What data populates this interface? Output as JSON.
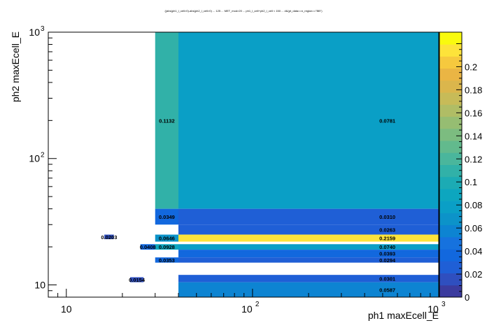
{
  "chart_data": {
    "type": "heatmap",
    "title": "((abs(ph1_l_cell>0)-abs(ph2_l_cell>0) ... 125 ... MET_mod>20 ... ph1_l_cell+ph2_l_cell < 150 ... d&(pt_data==n_region==\"BB\")",
    "xlabel": "ph1 maxEcell_E",
    "ylabel": "ph2 maxEcell_E",
    "xscale": "log",
    "yscale": "log",
    "xlim": [
      8,
      1000
    ],
    "ylim": [
      8,
      1000
    ],
    "zlim": [
      0,
      0.23
    ],
    "cells": [
      {
        "x0": 16,
        "x1": 18,
        "y0": 23,
        "y1": 25,
        "z": 0.0203,
        "label": "0.0203"
      },
      {
        "x0": 22,
        "x1": 26,
        "y0": 10.5,
        "y1": 11.5,
        "z": 0.0154,
        "label": "0.0154"
      },
      {
        "x0": 25,
        "x1": 30,
        "y0": 19,
        "y1": 21,
        "z": 0.0408,
        "label": "0.0408"
      },
      {
        "x0": 30,
        "x1": 40,
        "y0": 40,
        "y1": 1000,
        "z": 0.1132,
        "label": "0.1132"
      },
      {
        "x0": 40,
        "x1": 1000,
        "y0": 40,
        "y1": 1000,
        "z": 0.0781,
        "label": "0.0781"
      },
      {
        "x0": 30,
        "x1": 40,
        "y0": 30,
        "y1": 40,
        "z": 0.0349,
        "label": "0.0349"
      },
      {
        "x0": 40,
        "x1": 1000,
        "y0": 30,
        "y1": 40,
        "z": 0.031,
        "label": "0.0310"
      },
      {
        "x0": 40,
        "x1": 1000,
        "y0": 25,
        "y1": 30,
        "z": 0.0263,
        "label": "0.0263"
      },
      {
        "x0": 30,
        "x1": 40,
        "y0": 22,
        "y1": 25,
        "z": 0.0646,
        "label": "0.0646"
      },
      {
        "x0": 40,
        "x1": 1000,
        "y0": 22,
        "y1": 25,
        "z": 0.2159,
        "label": "0.2159"
      },
      {
        "x0": 30,
        "x1": 40,
        "y0": 19,
        "y1": 21,
        "z": 0.0928,
        "label": "0.0928"
      },
      {
        "x0": 40,
        "x1": 1000,
        "y0": 19,
        "y1": 21,
        "z": 0.074,
        "label": "0.0740"
      },
      {
        "x0": 40,
        "x1": 1000,
        "y0": 16.5,
        "y1": 19,
        "z": 0.0393,
        "label": "0.0393"
      },
      {
        "x0": 30,
        "x1": 40,
        "y0": 15,
        "y1": 16.5,
        "z": 0.0353,
        "label": "0.0353"
      },
      {
        "x0": 40,
        "x1": 1000,
        "y0": 15,
        "y1": 16.5,
        "z": 0.0294,
        "label": "0.0294"
      },
      {
        "x0": 40,
        "x1": 1000,
        "y0": 10.5,
        "y1": 12,
        "z": 0.0301,
        "label": "0.0301"
      },
      {
        "x0": 40,
        "x1": 1000,
        "y0": 8,
        "y1": 10.5,
        "z": 0.0587,
        "label": "0.0587"
      }
    ],
    "x_major_ticks": [
      {
        "value": 10,
        "base": "10",
        "exp": ""
      },
      {
        "value": 100,
        "base": "10",
        "exp": "2"
      },
      {
        "value": 1000,
        "base": "10",
        "exp": "3"
      }
    ],
    "y_major_ticks": [
      {
        "value": 10,
        "base": "10",
        "exp": ""
      },
      {
        "value": 100,
        "base": "10",
        "exp": "2"
      },
      {
        "value": 1000,
        "base": "10",
        "exp": "3"
      }
    ],
    "colorbar_ticks": [
      {
        "value": 0,
        "label": "0"
      },
      {
        "value": 0.02,
        "label": "0.02"
      },
      {
        "value": 0.04,
        "label": "0.04"
      },
      {
        "value": 0.06,
        "label": "0.06"
      },
      {
        "value": 0.08,
        "label": "0.08"
      },
      {
        "value": 0.1,
        "label": "0.1"
      },
      {
        "value": 0.12,
        "label": "0.12"
      },
      {
        "value": 0.14,
        "label": "0.14"
      },
      {
        "value": 0.16,
        "label": "0.16"
      },
      {
        "value": 0.18,
        "label": "0.18"
      },
      {
        "value": 0.2,
        "label": "0.2"
      }
    ],
    "palette": [
      "#3b3b9e",
      "#2f4fbf",
      "#1f5fd6",
      "#1268de",
      "#1672de",
      "#0d84d2",
      "#0c93c9",
      "#0a9fc6",
      "#0da6bf",
      "#1cabb4",
      "#31b1a8",
      "#4ab69c",
      "#62ba8d",
      "#7cbc80",
      "#96bd72",
      "#b0bd65",
      "#c7bb58",
      "#dbb64c",
      "#eab544",
      "#f6c93e",
      "#fde33a",
      "#f9fa0e"
    ],
    "grid": false,
    "legend": "colorbar-right"
  }
}
